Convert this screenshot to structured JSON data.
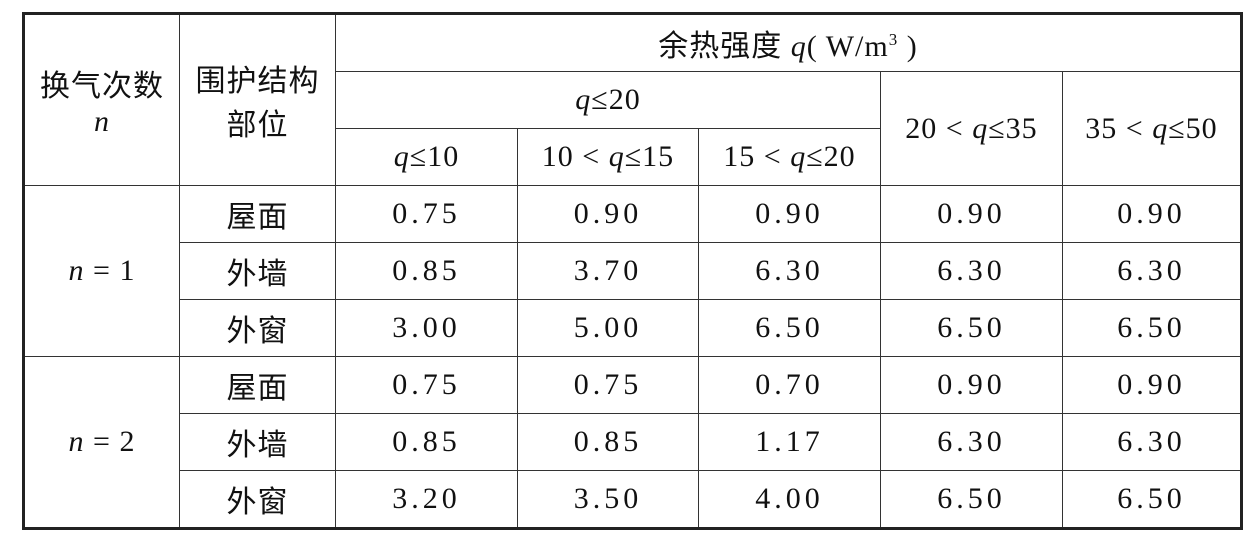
{
  "header": {
    "ach": {
      "label": "换气次数",
      "symbol": "n"
    },
    "part": {
      "line1": "围护结构",
      "line2": "部位"
    },
    "heat": {
      "label": "余热强度",
      "symbol": "q",
      "unit": "( W/m",
      "exponent": "3",
      "close": " )"
    },
    "sub": {
      "symbol": "q",
      "post": "≤20"
    },
    "cols": [
      {
        "symbol": "q",
        "post": "≤10"
      },
      {
        "pre": "10 < ",
        "symbol": "q",
        "post": "≤15"
      },
      {
        "pre": "15 < ",
        "symbol": "q",
        "post": "≤20"
      },
      {
        "pre": "20 < ",
        "symbol": "q",
        "post": "≤35"
      },
      {
        "pre": "35 < ",
        "symbol": "q",
        "post": "≤50"
      }
    ]
  },
  "groups": [
    {
      "symbol": "n",
      "eq": " = 1",
      "rows": [
        {
          "part": "屋面",
          "values": [
            "0.75",
            "0.90",
            "0.90",
            "0.90",
            "0.90"
          ]
        },
        {
          "part": "外墙",
          "values": [
            "0.85",
            "3.70",
            "6.30",
            "6.30",
            "6.30"
          ]
        },
        {
          "part": "外窗",
          "values": [
            "3.00",
            "5.00",
            "6.50",
            "6.50",
            "6.50"
          ]
        }
      ]
    },
    {
      "symbol": "n",
      "eq": " = 2",
      "rows": [
        {
          "part": "屋面",
          "values": [
            "0.75",
            "0.75",
            "0.70",
            "0.90",
            "0.90"
          ]
        },
        {
          "part": "外墙",
          "values": [
            "0.85",
            "0.85",
            "1.17",
            "6.30",
            "6.30"
          ]
        },
        {
          "part": "外窗",
          "values": [
            "3.20",
            "3.50",
            "4.00",
            "6.50",
            "6.50"
          ]
        }
      ]
    }
  ]
}
